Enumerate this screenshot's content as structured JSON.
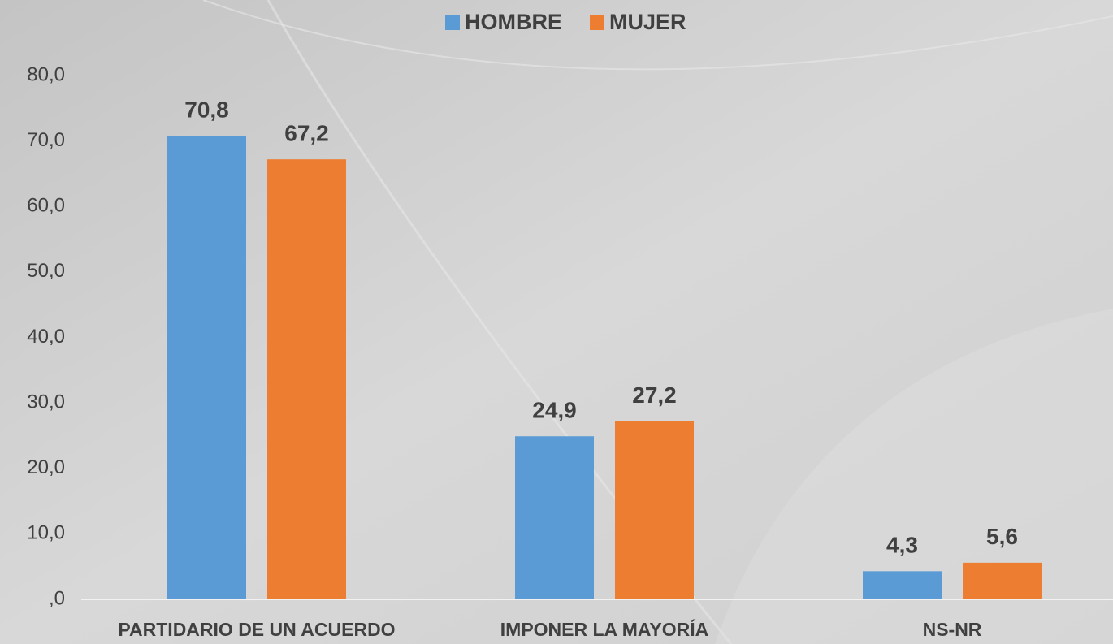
{
  "chart_data": {
    "type": "bar",
    "categories": [
      "PARTIDARIO DE UN ACUERDO",
      "IMPONER LA MAYORÍA",
      "NS-NR"
    ],
    "series": [
      {
        "name": "HOMBRE",
        "color": "#5b9bd5",
        "values": [
          70.8,
          24.9,
          4.3
        ],
        "value_labels": [
          "70,8",
          "24,9",
          "4,3"
        ]
      },
      {
        "name": "MUJER",
        "color": "#ed7d31",
        "values": [
          67.2,
          27.2,
          5.6
        ],
        "value_labels": [
          "67,2",
          "27,2",
          "5,6"
        ]
      }
    ],
    "ylim": [
      0,
      80
    ],
    "yticks": [
      {
        "value": 0,
        "label": ",0"
      },
      {
        "value": 10,
        "label": "10,0"
      },
      {
        "value": 20,
        "label": "20,0"
      },
      {
        "value": 30,
        "label": "30,0"
      },
      {
        "value": 40,
        "label": "40,0"
      },
      {
        "value": 50,
        "label": "50,0"
      },
      {
        "value": 60,
        "label": "60,0"
      },
      {
        "value": 70,
        "label": "70,0"
      },
      {
        "value": 80,
        "label": "80,0"
      }
    ],
    "grid": false,
    "legend": "top"
  }
}
